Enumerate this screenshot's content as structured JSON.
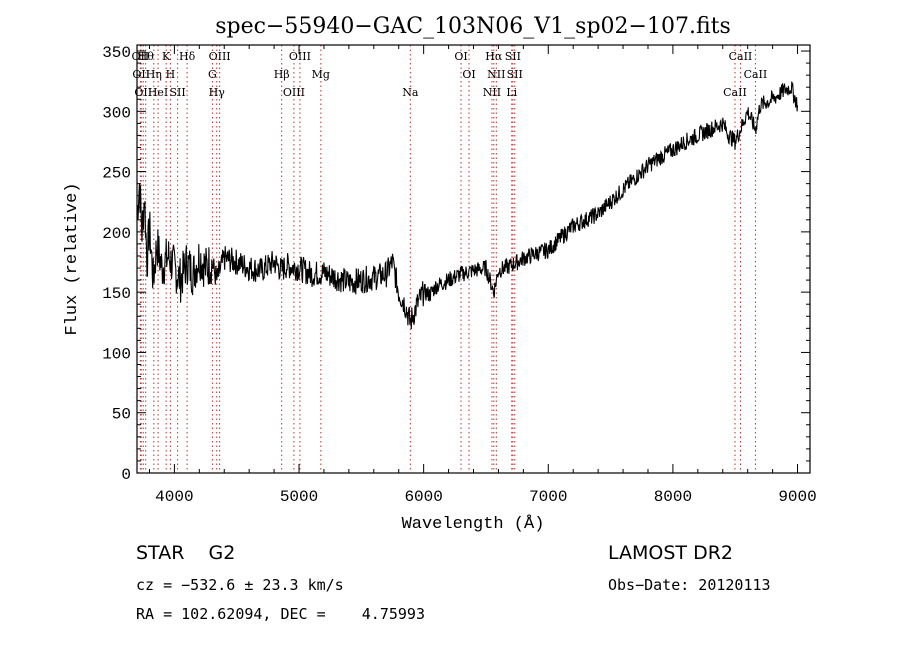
{
  "chart_data": {
    "type": "line",
    "title": "spec−55940−GAC_103N06_V1_sp02−107.fits",
    "xlabel": "Wavelength (Å)",
    "ylabel": "Flux (relative)",
    "xlim": [
      3700,
      9100
    ],
    "ylim": [
      0,
      355
    ],
    "xticks": [
      4000,
      5000,
      6000,
      7000,
      8000,
      9000
    ],
    "yticks": [
      0,
      50,
      100,
      150,
      200,
      250,
      300,
      350
    ],
    "grid": false,
    "line_color": "#000000",
    "marker_color": "#c03030",
    "series": [
      {
        "x": [
          3700,
          3720,
          3740,
          3760,
          3780,
          3800,
          3830,
          3860,
          3900,
          3950,
          4000,
          4050,
          4100,
          4150,
          4200,
          4250,
          4300,
          4340,
          4400,
          4500,
          4600,
          4700,
          4800,
          4861,
          4900,
          5000,
          5100,
          5200,
          5300,
          5400,
          5500,
          5600,
          5700,
          5750,
          5800,
          5850,
          5893,
          5950,
          6000,
          6050,
          6100,
          6200,
          6300,
          6400,
          6500,
          6563,
          6600,
          6700,
          6800,
          6900,
          7000,
          7050,
          7100,
          7200,
          7300,
          7400,
          7500,
          7600,
          7700,
          7800,
          7900,
          8000,
          8100,
          8200,
          8300,
          8400,
          8450,
          8498,
          8542,
          8600,
          8662,
          8700,
          8800,
          8900,
          8950,
          9000
        ],
        "y": [
          215,
          240,
          200,
          230,
          175,
          205,
          160,
          190,
          170,
          180,
          170,
          160,
          175,
          165,
          180,
          170,
          175,
          160,
          178,
          175,
          170,
          168,
          175,
          168,
          172,
          170,
          165,
          166,
          162,
          158,
          160,
          162,
          165,
          175,
          150,
          140,
          125,
          140,
          150,
          148,
          155,
          160,
          165,
          168,
          170,
          150,
          168,
          172,
          178,
          182,
          185,
          190,
          195,
          205,
          210,
          215,
          225,
          235,
          245,
          255,
          262,
          268,
          275,
          280,
          285,
          290,
          280,
          275,
          285,
          300,
          285,
          305,
          310,
          318,
          320,
          305
        ]
      }
    ],
    "lines": [
      {
        "x": 3727,
        "labels": [
          "OII"
        ]
      },
      {
        "x": 3734,
        "labels": [
          "OII"
        ]
      },
      {
        "x": 3750,
        "labels": [
          "OII"
        ]
      },
      {
        "x": 3770,
        "labels": [
          "Hθ"
        ]
      },
      {
        "x": 3835,
        "labels": [
          "Hη"
        ]
      },
      {
        "x": 3869,
        "labels": [
          "HeI"
        ]
      },
      {
        "x": 3934,
        "labels": [
          "K"
        ]
      },
      {
        "x": 3968,
        "labels": [
          "H"
        ]
      },
      {
        "x": 4026,
        "labels": [
          "SII"
        ]
      },
      {
        "x": 4102,
        "labels": [
          "Hδ"
        ]
      },
      {
        "x": 4305,
        "labels": [
          "G"
        ]
      },
      {
        "x": 4340,
        "labels": [
          "Hγ"
        ]
      },
      {
        "x": 4363,
        "labels": [
          "OIII"
        ]
      },
      {
        "x": 4861,
        "labels": [
          "Hβ"
        ]
      },
      {
        "x": 4959,
        "labels": [
          "OIII"
        ]
      },
      {
        "x": 5007,
        "labels": [
          "OIII"
        ]
      },
      {
        "x": 5175,
        "labels": [
          "Mg"
        ]
      },
      {
        "x": 5893,
        "labels": [
          "Na"
        ]
      },
      {
        "x": 6300,
        "labels": [
          "OI"
        ]
      },
      {
        "x": 6364,
        "labels": [
          "OI"
        ]
      },
      {
        "x": 6548,
        "labels": [
          "NII"
        ]
      },
      {
        "x": 6563,
        "labels": [
          "Hα"
        ]
      },
      {
        "x": 6583,
        "labels": [
          "NII"
        ]
      },
      {
        "x": 6707,
        "labels": [
          "Li"
        ]
      },
      {
        "x": 6716,
        "labels": [
          "SII"
        ]
      },
      {
        "x": 6731,
        "labels": [
          "SII"
        ]
      },
      {
        "x": 8498,
        "labels": [
          "CaII"
        ]
      },
      {
        "x": 8542,
        "labels": [
          "CaII"
        ]
      },
      {
        "x": 8662,
        "labels": [
          "CaII"
        ]
      }
    ]
  },
  "info": {
    "class_text": "STAR    G2",
    "survey": "LAMOST DR2",
    "cz_text": "cz = −532.6 ± 23.3 km/s",
    "obs_date": "Obs−Date: 20120113",
    "coords_text": "RA = 102.62094, DEC =    4.75993"
  }
}
